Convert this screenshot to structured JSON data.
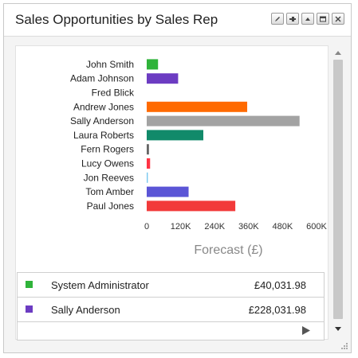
{
  "widget": {
    "title": "Sales Opportunities by Sales Rep",
    "header_buttons": [
      {
        "icon": "edit-icon"
      },
      {
        "icon": "pin-icon"
      },
      {
        "icon": "collapse-icon"
      },
      {
        "icon": "maximize-icon"
      },
      {
        "icon": "close-icon"
      }
    ]
  },
  "chart_data": {
    "type": "bar",
    "orientation": "horizontal",
    "categories": [
      "John Smith",
      "Adam Johnson",
      "Fred Blick",
      "Andrew Jones",
      "Sally Anderson",
      "Laura Roberts",
      "Fern Rogers",
      "Lucy Owens",
      "Jon Reeves",
      "Tom Amber",
      "Paul Jones"
    ],
    "values": [
      40031.98,
      111000,
      0,
      355000,
      540000,
      200000,
      8000,
      12000,
      4000,
      148000,
      313000
    ],
    "colors": [
      "#2fb33a",
      "#6c3cc2",
      "#aaaaaa",
      "#ff6a00",
      "#a3a3a3",
      "#118a6a",
      "#666666",
      "#ff3344",
      "#78c8f0",
      "#5b55d6",
      "#f23a3a"
    ],
    "xlabel": "Forecast (£)",
    "xlim": [
      0,
      600000
    ],
    "xticks": [
      "0",
      "120K",
      "240K",
      "360K",
      "480K",
      "600K"
    ],
    "grid": false
  },
  "legend": {
    "rows": [
      {
        "name": "System Administrator",
        "amount": "£40,031.98",
        "color": "#2fb33a"
      },
      {
        "name": "Sally Anderson",
        "amount": "£228,031.98",
        "color": "#6c3cc2"
      }
    ]
  }
}
